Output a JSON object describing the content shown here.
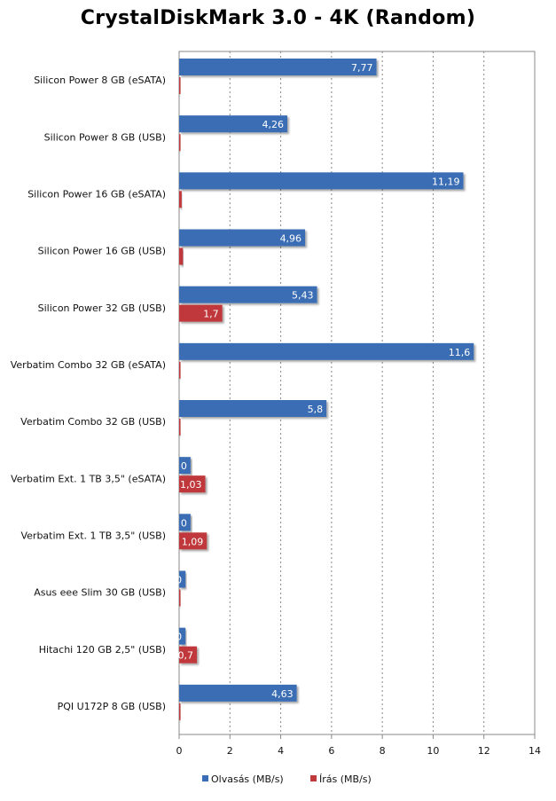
{
  "chart_data": {
    "type": "bar",
    "orientation": "horizontal",
    "title": "CrystalDiskMark  3.0 - 4K (Random)",
    "categories": [
      "Silicon Power 8 GB (eSATA)",
      "Silicon Power 8 GB (USB)",
      "Silicon Power 16 GB (eSATA)",
      "Silicon Power 16 GB (USB)",
      "Silicon Power 32 GB (USB)",
      "Verbatim Combo 32 GB (eSATA)",
      "Verbatim Combo 32 GB (USB)",
      "Verbatim Ext.  1 TB 3,5\" (eSATA)",
      "Verbatim Ext.  1 TB 3,5\" (USB)",
      "Asus eee Slim 30 GB (USB)",
      "Hitachi 120 GB 2,5\" (USB)",
      "PQI U172P 8 GB (USB)"
    ],
    "series": [
      {
        "name": "Olvasás (MB/s)",
        "color": "#3a6db5",
        "values": [
          7.77,
          4.26,
          11.19,
          4.96,
          5.43,
          11.6,
          5.8,
          0.45,
          0.45,
          0.25,
          0.25,
          4.63
        ],
        "labels": [
          "7,77",
          "4,26",
          "11,19",
          "4,96",
          "5,43",
          "11,6",
          "5,8",
          "0",
          "0",
          "0",
          "0",
          "4,63"
        ]
      },
      {
        "name": "Írás (MB/s)",
        "color": "#c0393b",
        "values": [
          0.05,
          0.05,
          0.1,
          0.15,
          1.7,
          0.05,
          0.05,
          1.03,
          1.09,
          0.05,
          0.7,
          0.02
        ],
        "labels": [
          "",
          "",
          "",
          "",
          "1,7",
          "",
          "",
          "1,03",
          "1,09",
          "",
          "0,7",
          ""
        ]
      }
    ],
    "xlim": [
      0,
      14
    ],
    "xticks": [
      "0",
      "2",
      "4",
      "6",
      "8",
      "10",
      "12",
      "14"
    ],
    "grid": true,
    "legend": "bottom"
  }
}
